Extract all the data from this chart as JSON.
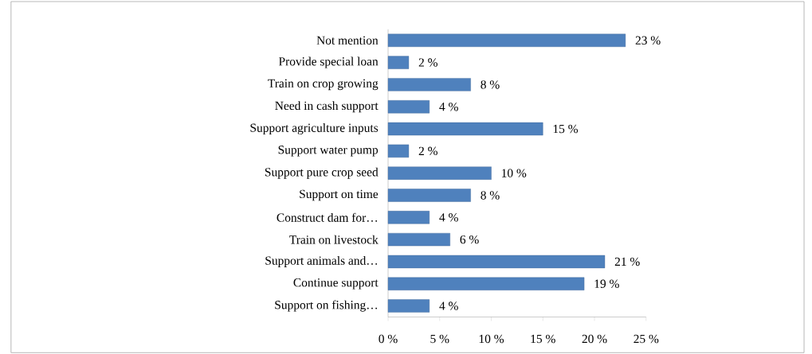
{
  "chart_data": {
    "type": "bar",
    "orientation": "horizontal",
    "categories": [
      "Not mention",
      "Provide special loan",
      "Train on crop growing",
      "Need in cash support",
      "Support agriculture inputs",
      "Support water pump",
      "Support pure crop seed",
      "Support on time",
      "Construct dam for…",
      "Train on livestock",
      "Support animals and…",
      "Continue support",
      "Support on fishing…"
    ],
    "values": [
      23,
      2,
      8,
      4,
      15,
      2,
      10,
      8,
      4,
      6,
      21,
      19,
      4
    ],
    "value_labels": [
      "23 %",
      "2 %",
      "8 %",
      "4 %",
      "15 %",
      "2 %",
      "10 %",
      "8 %",
      "4 %",
      "6 %",
      "21 %",
      "19 %",
      "4 %"
    ],
    "color": "#4f81bd",
    "xlim": [
      0,
      25
    ],
    "xticks": [
      {
        "value": 0,
        "label": "0 %"
      },
      {
        "value": 5,
        "label": "5 %"
      },
      {
        "value": 10,
        "label": "10 %"
      },
      {
        "value": 15,
        "label": "15 %"
      },
      {
        "value": 20,
        "label": "20 %"
      },
      {
        "value": 25,
        "label": "25 %"
      }
    ],
    "grid": false
  }
}
